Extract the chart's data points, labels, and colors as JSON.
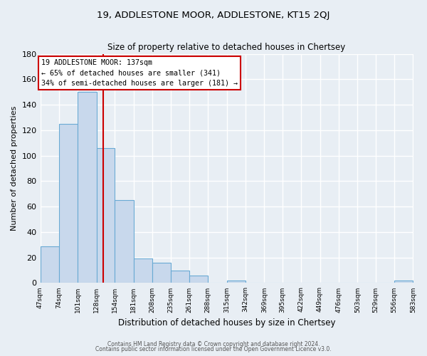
{
  "title": "19, ADDLESTONE MOOR, ADDLESTONE, KT15 2QJ",
  "subtitle": "Size of property relative to detached houses in Chertsey",
  "xlabel": "Distribution of detached houses by size in Chertsey",
  "ylabel": "Number of detached properties",
  "bin_edges": [
    47,
    74,
    101,
    128,
    154,
    181,
    208,
    235,
    261,
    288,
    315,
    342,
    369,
    395,
    422,
    449,
    476,
    503,
    529,
    556,
    583
  ],
  "bar_heights": [
    29,
    125,
    150,
    106,
    65,
    19,
    16,
    10,
    6,
    0,
    2,
    0,
    0,
    0,
    0,
    0,
    0,
    0,
    0,
    2
  ],
  "bar_color": "#c8d8ec",
  "bar_edge_color": "#6aaad4",
  "tick_labels": [
    "47sqm",
    "74sqm",
    "101sqm",
    "128sqm",
    "154sqm",
    "181sqm",
    "208sqm",
    "235sqm",
    "261sqm",
    "288sqm",
    "315sqm",
    "342sqm",
    "369sqm",
    "395sqm",
    "422sqm",
    "449sqm",
    "476sqm",
    "503sqm",
    "529sqm",
    "556sqm",
    "583sqm"
  ],
  "property_line_x": 137,
  "property_line_color": "#cc0000",
  "ylim": [
    0,
    180
  ],
  "yticks": [
    0,
    20,
    40,
    60,
    80,
    100,
    120,
    140,
    160,
    180
  ],
  "annotation_title": "19 ADDLESTONE MOOR: 137sqm",
  "annotation_line1": "← 65% of detached houses are smaller (341)",
  "annotation_line2": "34% of semi-detached houses are larger (181) →",
  "annotation_box_color": "#ffffff",
  "annotation_box_edge": "#cc0000",
  "footer_line1": "Contains HM Land Registry data © Crown copyright and database right 2024.",
  "footer_line2": "Contains public sector information licensed under the Open Government Licence v3.0.",
  "background_color": "#e8eef4",
  "grid_color": "#ffffff"
}
